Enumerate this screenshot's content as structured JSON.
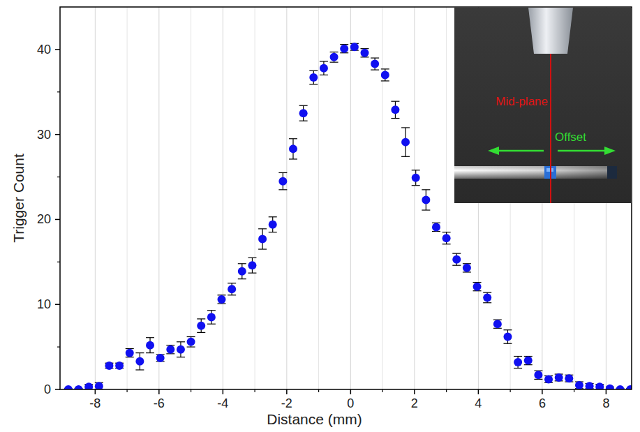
{
  "chart_data": {
    "type": "scatter",
    "x_label": "Distance (mm)",
    "y_label": "Trigger Count",
    "annotations": [
      "Mid-plane",
      "Offset"
    ],
    "xlim": [
      -9.1,
      8.8
    ],
    "ylim": [
      0,
      45
    ],
    "xticks": [
      -8,
      -6,
      -4,
      -2,
      0,
      2,
      4,
      6,
      8
    ],
    "yticks": [
      0,
      10,
      20,
      30,
      40
    ],
    "grid": true,
    "x": [
      -8.84,
      -8.52,
      -8.2,
      -7.88,
      -7.56,
      -7.24,
      -6.92,
      -6.6,
      -6.28,
      -5.96,
      -5.64,
      -5.32,
      -5,
      -4.68,
      -4.36,
      -4.04,
      -3.72,
      -3.4,
      -3.08,
      -2.76,
      -2.44,
      -2.12,
      -1.8,
      -1.48,
      -1.16,
      -0.84,
      -0.52,
      -0.2,
      0.12,
      0.44,
      0.76,
      1.08,
      1.4,
      1.72,
      2.04,
      2.36,
      2.68,
      3,
      3.32,
      3.64,
      3.96,
      4.28,
      4.6,
      4.92,
      5.24,
      5.56,
      5.88,
      6.2,
      6.52,
      6.84,
      7.16,
      7.48,
      7.8,
      8.12,
      8.44,
      8.76
    ],
    "series": [
      {
        "color": "#1010f0",
        "marker": "circle",
        "values": [
          0,
          0,
          0.3,
          0.4,
          2.8,
          2.8,
          4.3,
          3.3,
          5.2,
          3.7,
          4.7,
          4.7,
          5.6,
          7.5,
          8.5,
          10.6,
          11.8,
          13.9,
          14.6,
          17.7,
          19.4,
          24.5,
          28.3,
          32.5,
          36.7,
          37.8,
          39.1,
          40.1,
          40.3,
          39.6,
          38.3,
          37.0,
          32.9,
          29.1,
          24.9,
          22.3,
          19.1,
          17.8,
          15.3,
          14.3,
          12.1,
          10.8,
          7.7,
          6.2,
          3.2,
          3.4,
          1.7,
          1.2,
          1.4,
          1.3,
          0.5,
          0.4,
          0.3,
          0.1,
          0,
          0
        ],
        "errors": [
          0.1,
          0.1,
          0.3,
          0.4,
          0.3,
          0.3,
          0.5,
          1.0,
          0.9,
          0.4,
          0.5,
          0.9,
          0.6,
          0.8,
          0.8,
          0.5,
          0.7,
          0.9,
          0.9,
          1.2,
          0.9,
          1.0,
          1.2,
          0.9,
          0.8,
          0.8,
          0.6,
          0.5,
          0.4,
          0.5,
          0.7,
          0.7,
          1.0,
          1.7,
          0.9,
          1.2,
          0.5,
          0.7,
          0.7,
          0.5,
          0.5,
          0.6,
          0.5,
          0.8,
          0.7,
          0.5,
          0.5,
          0.4,
          0.4,
          0.4,
          0.4,
          0.3,
          0.3,
          0.2,
          0.1,
          0.1
        ]
      }
    ]
  }
}
